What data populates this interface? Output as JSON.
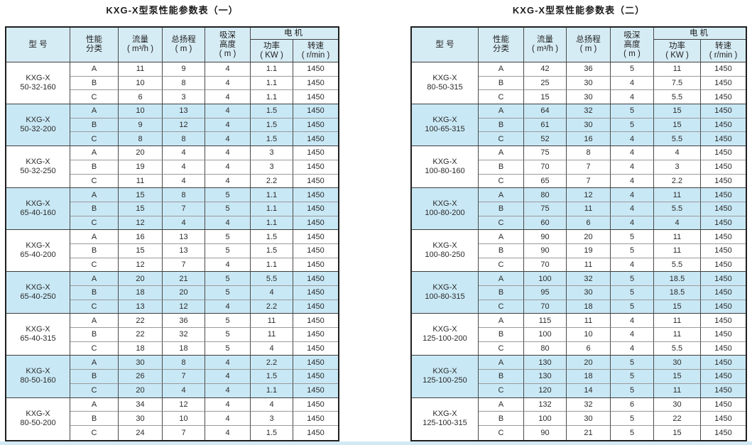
{
  "colors": {
    "header_bg": "#d6ecf5",
    "highlight_row_bg": "#c9e8f5",
    "outer_border": "#1f1f1f",
    "group_border": "#3d3d3d",
    "inner_border": "#9a9a9a",
    "bottom_strip": "#d2e9f2"
  },
  "headers": {
    "model": "型  号",
    "class_lines": [
      "性能",
      "分类"
    ],
    "flow_lines": [
      "流量",
      "( m³/h )"
    ],
    "head_lines": [
      "总扬程",
      "( m )"
    ],
    "suction_lines": [
      "吸深",
      "高度",
      "( m )"
    ],
    "motor": "电机",
    "power_lines": [
      "功率",
      "( KW )"
    ],
    "speed_lines": [
      "转速",
      "( r/min )"
    ]
  },
  "tables": [
    {
      "title": "KXG-X型泵性能参数表（一）",
      "groups": [
        {
          "model": [
            "KXG-X",
            "50-32-160"
          ],
          "highlight": false,
          "rows": [
            [
              "A",
              "11",
              "9",
              "4",
              "1.1",
              "1450"
            ],
            [
              "B",
              "10",
              "8",
              "4",
              "1.1",
              "1450"
            ],
            [
              "C",
              "6",
              "3",
              "4",
              "1.1",
              "1450"
            ]
          ]
        },
        {
          "model": [
            "KXG-X",
            "50-32-200"
          ],
          "highlight": true,
          "rows": [
            [
              "A",
              "10",
              "13",
              "4",
              "1.5",
              "1450"
            ],
            [
              "B",
              "9",
              "12",
              "4",
              "1.5",
              "1450"
            ],
            [
              "C",
              "8",
              "8",
              "4",
              "1.5",
              "1450"
            ]
          ]
        },
        {
          "model": [
            "KXG-X",
            "50-32-250"
          ],
          "highlight": false,
          "rows": [
            [
              "A",
              "20",
              "4",
              "4",
              "3",
              "1450"
            ],
            [
              "B",
              "19",
              "4",
              "4",
              "3",
              "1450"
            ],
            [
              "C",
              "11",
              "4",
              "4",
              "2.2",
              "1450"
            ]
          ]
        },
        {
          "model": [
            "KXG-X",
            "65-40-160"
          ],
          "highlight": true,
          "rows": [
            [
              "A",
              "15",
              "8",
              "5",
              "1.1",
              "1450"
            ],
            [
              "B",
              "15",
              "7",
              "5",
              "1.1",
              "1450"
            ],
            [
              "C",
              "12",
              "4",
              "4",
              "1.1",
              "1450"
            ]
          ]
        },
        {
          "model": [
            "KXG-X",
            "65-40-200"
          ],
          "highlight": false,
          "rows": [
            [
              "A",
              "16",
              "13",
              "5",
              "1.5",
              "1450"
            ],
            [
              "B",
              "15",
              "13",
              "5",
              "1.5",
              "1450"
            ],
            [
              "C",
              "12",
              "7",
              "4",
              "1.1",
              "1450"
            ]
          ]
        },
        {
          "model": [
            "KXG-X",
            "65-40-250"
          ],
          "highlight": true,
          "rows": [
            [
              "A",
              "20",
              "21",
              "5",
              "5.5",
              "1450"
            ],
            [
              "B",
              "18",
              "20",
              "5",
              "4",
              "1450"
            ],
            [
              "C",
              "13",
              "12",
              "4",
              "2.2",
              "1450"
            ]
          ]
        },
        {
          "model": [
            "KXG-X",
            "65-40-315"
          ],
          "highlight": false,
          "rows": [
            [
              "A",
              "22",
              "36",
              "5",
              "11",
              "1450"
            ],
            [
              "B",
              "22",
              "32",
              "5",
              "11",
              "1450"
            ],
            [
              "C",
              "18",
              "18",
              "5",
              "4",
              "1450"
            ]
          ]
        },
        {
          "model": [
            "KXG-X",
            "80-50-160"
          ],
          "highlight": true,
          "rows": [
            [
              "A",
              "30",
              "8",
              "4",
              "2.2",
              "1450"
            ],
            [
              "B",
              "26",
              "7",
              "4",
              "1.5",
              "1450"
            ],
            [
              "C",
              "20",
              "4",
              "4",
              "1.1",
              "1450"
            ]
          ]
        },
        {
          "model": [
            "KXG-X",
            "80-50-200"
          ],
          "highlight": false,
          "rows": [
            [
              "A",
              "34",
              "12",
              "4",
              "4",
              "1450"
            ],
            [
              "B",
              "30",
              "10",
              "4",
              "3",
              "1450"
            ],
            [
              "C",
              "24",
              "7",
              "4",
              "1.5",
              "1450"
            ]
          ]
        }
      ]
    },
    {
      "title": "KXG-X型泵性能参数表（二）",
      "groups": [
        {
          "model": [
            "KXG-X",
            "80-50-315"
          ],
          "highlight": false,
          "rows": [
            [
              "A",
              "42",
              "36",
              "5",
              "11",
              "1450"
            ],
            [
              "B",
              "25",
              "30",
              "4",
              "7.5",
              "1450"
            ],
            [
              "C",
              "15",
              "30",
              "4",
              "5.5",
              "1450"
            ]
          ]
        },
        {
          "model": [
            "KXG-X",
            "100-65-315"
          ],
          "highlight": true,
          "rows": [
            [
              "A",
              "64",
              "32",
              "5",
              "15",
              "1450"
            ],
            [
              "B",
              "61",
              "30",
              "5",
              "15",
              "1450"
            ],
            [
              "C",
              "52",
              "16",
              "4",
              "5.5",
              "1450"
            ]
          ]
        },
        {
          "model": [
            "KXG-X",
            "100-80-160"
          ],
          "highlight": false,
          "rows": [
            [
              "A",
              "75",
              "8",
              "4",
              "4",
              "1450"
            ],
            [
              "B",
              "70",
              "7",
              "4",
              "3",
              "1450"
            ],
            [
              "C",
              "65",
              "7",
              "4",
              "2.2",
              "1450"
            ]
          ]
        },
        {
          "model": [
            "KXG-X",
            "100-80-200"
          ],
          "highlight": true,
          "rows": [
            [
              "A",
              "80",
              "12",
              "4",
              "11",
              "1450"
            ],
            [
              "B",
              "75",
              "11",
              "4",
              "5.5",
              "1450"
            ],
            [
              "C",
              "60",
              "6",
              "4",
              "4",
              "1450"
            ]
          ]
        },
        {
          "model": [
            "KXG-X",
            "100-80-250"
          ],
          "highlight": false,
          "rows": [
            [
              "A",
              "90",
              "20",
              "5",
              "11",
              "1450"
            ],
            [
              "B",
              "90",
              "19",
              "5",
              "11",
              "1450"
            ],
            [
              "C",
              "70",
              "11",
              "4",
              "5.5",
              "1450"
            ]
          ]
        },
        {
          "model": [
            "KXG-X",
            "100-80-315"
          ],
          "highlight": true,
          "rows": [
            [
              "A",
              "100",
              "32",
              "5",
              "18.5",
              "1450"
            ],
            [
              "B",
              "95",
              "30",
              "5",
              "18.5",
              "1450"
            ],
            [
              "C",
              "70",
              "18",
              "5",
              "15",
              "1450"
            ]
          ]
        },
        {
          "model": [
            "KXG-X",
            "125-100-200"
          ],
          "highlight": false,
          "rows": [
            [
              "A",
              "115",
              "11",
              "4",
              "11",
              "1450"
            ],
            [
              "B",
              "100",
              "10",
              "4",
              "11",
              "1450"
            ],
            [
              "C",
              "80",
              "6",
              "4",
              "5.5",
              "1450"
            ]
          ]
        },
        {
          "model": [
            "KXG-X",
            "125-100-250"
          ],
          "highlight": true,
          "rows": [
            [
              "A",
              "130",
              "20",
              "5",
              "30",
              "1450"
            ],
            [
              "B",
              "130",
              "18",
              "5",
              "15",
              "1450"
            ],
            [
              "C",
              "120",
              "14",
              "5",
              "11",
              "1450"
            ]
          ]
        },
        {
          "model": [
            "KXG-X",
            "125-100-315"
          ],
          "highlight": false,
          "rows": [
            [
              "A",
              "132",
              "32",
              "6",
              "30",
              "1450"
            ],
            [
              "B",
              "100",
              "30",
              "5",
              "22",
              "1450"
            ],
            [
              "C",
              "90",
              "21",
              "5",
              "15",
              "1450"
            ]
          ]
        }
      ]
    }
  ]
}
